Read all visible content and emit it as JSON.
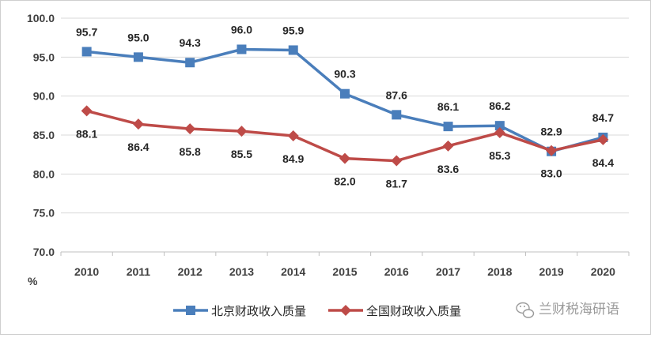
{
  "chart_data": {
    "type": "line",
    "categories": [
      "2010",
      "2011",
      "2012",
      "2013",
      "2014",
      "2015",
      "2016",
      "2017",
      "2018",
      "2019",
      "2020"
    ],
    "ylim": [
      70.0,
      100.0
    ],
    "yticks": [
      "100.0",
      "95.0",
      "90.0",
      "85.0",
      "80.0",
      "75.0",
      "70.0"
    ],
    "ylabel": "%",
    "grid": true,
    "legend_position": "bottom",
    "series": [
      {
        "name": "北京财政收入质量",
        "color": "#4a7ebb",
        "marker": "square",
        "values": [
          95.7,
          95.0,
          94.3,
          96.0,
          95.9,
          90.3,
          87.6,
          86.1,
          86.2,
          82.9,
          84.7
        ],
        "labels": [
          "95.7",
          "95.0",
          "94.3",
          "96.0",
          "95.9",
          "90.3",
          "87.6",
          "86.1",
          "86.2",
          "82.9",
          "84.7"
        ]
      },
      {
        "name": "全国财政收入质量",
        "color": "#be4b48",
        "marker": "diamond",
        "values": [
          88.1,
          86.4,
          85.8,
          85.5,
          84.9,
          82.0,
          81.7,
          83.6,
          85.3,
          83.0,
          84.4
        ],
        "labels": [
          "88.1",
          "86.4",
          "85.8",
          "85.5",
          "84.9",
          "82.0",
          "81.7",
          "83.6",
          "85.3",
          "83.0",
          "84.4"
        ]
      }
    ]
  },
  "watermark": {
    "text": "兰财税海研语",
    "icon": "wechat-icon"
  }
}
